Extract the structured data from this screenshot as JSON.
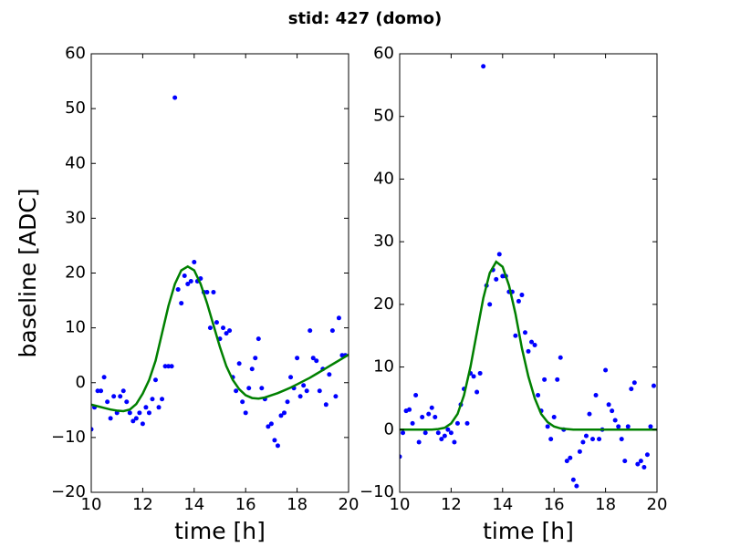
{
  "title": "stid: 427 (domo)",
  "chart_data": [
    {
      "type": "scatter",
      "xlabel": "time [h]",
      "ylabel": "baseline [ADC]",
      "xlim": [
        10,
        20
      ],
      "ylim": [
        -20,
        60
      ],
      "xticks": [
        10,
        12,
        14,
        16,
        18,
        20
      ],
      "yticks": [
        {
          "value": -20,
          "label": "−20"
        },
        {
          "value": -10,
          "label": "−10"
        },
        0,
        10,
        20,
        30,
        40,
        50,
        60
      ],
      "series": [
        {
          "mode": "markers",
          "color": "#0000ff",
          "x": [
            10,
            10.125,
            10.25,
            10.375,
            10.5,
            10.625,
            10.75,
            10.875,
            11,
            11.125,
            11.25,
            11.375,
            11.5,
            11.625,
            11.75,
            11.875,
            12,
            12.125,
            12.25,
            12.375,
            12.5,
            12.625,
            12.75,
            12.875,
            13,
            13.125,
            13.25,
            13.375,
            13.5,
            13.625,
            13.75,
            13.875,
            14,
            14.125,
            14.25,
            14.375,
            14.5,
            14.625,
            14.75,
            14.875,
            15,
            15.125,
            15.25,
            15.375,
            15.5,
            15.625,
            15.75,
            15.875,
            16,
            16.125,
            16.25,
            16.375,
            16.5,
            16.625,
            16.75,
            16.875,
            17,
            17.125,
            17.25,
            17.375,
            17.5,
            17.625,
            17.75,
            17.875,
            18,
            18.125,
            18.25,
            18.375,
            18.5,
            18.625,
            18.75,
            18.875,
            19,
            19.125,
            19.25,
            19.375,
            19.5,
            19.625,
            19.75,
            19.875
          ],
          "values": [
            -8.5,
            -4.5,
            -1.5,
            -1.5,
            1,
            -3.5,
            -6.5,
            -2.5,
            -5.5,
            -2.5,
            -1.5,
            -3.5,
            -5.5,
            -7,
            -6.5,
            -5.5,
            -7.5,
            -4.5,
            -5.5,
            -3,
            0.5,
            -4.5,
            -3,
            3,
            3,
            3,
            52,
            17,
            14.5,
            19.5,
            18,
            18.5,
            22,
            18.5,
            19,
            16.5,
            16.5,
            10,
            16.5,
            11,
            8,
            10,
            9,
            9.5,
            1,
            -1.5,
            3.5,
            -3.5,
            -5.5,
            -1,
            2.5,
            4.5,
            8,
            -1,
            -3,
            -8,
            -7.5,
            -10.5,
            -11.5,
            -6,
            -5.5,
            -3.5,
            1,
            -1,
            4.5,
            -2.5,
            -0.5,
            -1.5,
            9.5,
            4.5,
            4,
            -1.5,
            2.5,
            -4,
            1.5,
            9.5,
            -2.5,
            11.8,
            5,
            5
          ]
        },
        {
          "mode": "line",
          "color": "#008000",
          "x": [
            10,
            10.25,
            10.5,
            10.75,
            11,
            11.25,
            11.5,
            11.75,
            12,
            12.25,
            12.5,
            12.75,
            13,
            13.25,
            13.5,
            13.75,
            14,
            14.25,
            14.5,
            14.75,
            15,
            15.25,
            15.5,
            15.75,
            16,
            16.25,
            16.5,
            16.75,
            17,
            17.25,
            17.5,
            17.75,
            18,
            18.25,
            18.5,
            18.75,
            19,
            19.25,
            19.5,
            19.75,
            20
          ],
          "values": [
            -4,
            -4.3,
            -4.6,
            -4.9,
            -5.1,
            -5.2,
            -4.9,
            -3.9,
            -2,
            0.5,
            4,
            9,
            14,
            18,
            20.5,
            21.2,
            20.5,
            18,
            14.5,
            10.5,
            6.5,
            3,
            0.5,
            -1.2,
            -2.3,
            -2.8,
            -2.9,
            -2.7,
            -2.3,
            -1.9,
            -1.4,
            -0.9,
            -0.3,
            0.3,
            0.9,
            1.6,
            2.3,
            3,
            3.7,
            4.4,
            5.1
          ]
        }
      ]
    },
    {
      "type": "scatter",
      "xlabel": "time [h]",
      "xlim": [
        10,
        20
      ],
      "ylim": [
        -10,
        60
      ],
      "xticks": [
        10,
        12,
        14,
        16,
        18,
        20
      ],
      "yticks": [
        {
          "value": -10,
          "label": "−10"
        },
        0,
        10,
        20,
        30,
        40,
        50,
        60
      ],
      "series": [
        {
          "mode": "markers",
          "color": "#0000ff",
          "x": [
            10,
            10.125,
            10.25,
            10.375,
            10.5,
            10.625,
            10.75,
            10.875,
            11,
            11.125,
            11.25,
            11.375,
            11.5,
            11.625,
            11.75,
            11.875,
            12,
            12.125,
            12.25,
            12.375,
            12.5,
            12.625,
            12.75,
            12.875,
            13,
            13.125,
            13.25,
            13.375,
            13.5,
            13.625,
            13.75,
            13.875,
            14,
            14.125,
            14.25,
            14.375,
            14.5,
            14.625,
            14.75,
            14.875,
            15,
            15.125,
            15.25,
            15.375,
            15.5,
            15.625,
            15.75,
            15.875,
            16,
            16.125,
            16.25,
            16.375,
            16.5,
            16.625,
            16.75,
            16.875,
            17,
            17.125,
            17.25,
            17.375,
            17.5,
            17.625,
            17.75,
            17.875,
            18,
            18.125,
            18.25,
            18.375,
            18.5,
            18.625,
            18.75,
            18.875,
            19,
            19.125,
            19.25,
            19.375,
            19.5,
            19.625,
            19.75,
            19.875
          ],
          "values": [
            -4.3,
            -0.5,
            3,
            3.2,
            1,
            5.5,
            -2,
            2,
            -0.5,
            2.5,
            3.5,
            2,
            -0.5,
            -1.5,
            -1,
            0,
            -0.5,
            -2,
            1,
            4,
            6.5,
            1,
            9,
            8.5,
            6,
            9,
            58,
            23,
            20,
            25.5,
            24,
            28,
            24.5,
            24.5,
            22,
            22,
            15,
            20.5,
            21.5,
            15.5,
            12.5,
            14,
            13.5,
            5.5,
            3,
            8,
            0.5,
            -1.5,
            2,
            8,
            11.5,
            0,
            -5,
            -4.5,
            -8,
            -9,
            -3.5,
            -2,
            -1,
            2.5,
            -1.5,
            5.5,
            -1.5,
            0,
            9.5,
            4,
            3,
            1.5,
            0.5,
            -1.5,
            -5,
            0.5,
            6.5,
            7.5,
            -5.5,
            -5,
            -6,
            -4,
            0.5,
            7
          ]
        },
        {
          "mode": "line",
          "color": "#008000",
          "x": [
            10,
            10.25,
            10.5,
            10.75,
            11,
            11.25,
            11.5,
            11.75,
            12,
            12.25,
            12.5,
            12.75,
            13,
            13.25,
            13.5,
            13.75,
            14,
            14.25,
            14.5,
            14.75,
            15,
            15.25,
            15.5,
            15.75,
            16,
            16.25,
            16.5,
            16.75,
            17,
            17.25,
            17.5,
            17.75,
            18,
            18.25,
            18.5,
            18.75,
            19,
            19.25,
            19.5,
            19.75,
            20
          ],
          "values": [
            0,
            0,
            0,
            0,
            0,
            0,
            0.1,
            0.3,
            1,
            2.5,
            5.5,
            10,
            15.5,
            21,
            25,
            26.8,
            26,
            23,
            18.5,
            13,
            8.5,
            5,
            2.5,
            1.2,
            0.5,
            0.2,
            0.1,
            0,
            0,
            0,
            0,
            0,
            0,
            0,
            0,
            0,
            0,
            0,
            0,
            0,
            0
          ]
        }
      ]
    }
  ]
}
